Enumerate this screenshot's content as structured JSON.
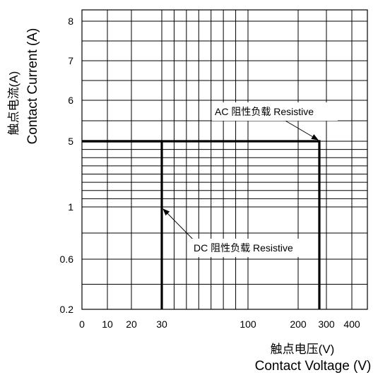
{
  "chart_data": {
    "type": "line",
    "title": "",
    "xlabel": "Contact Voltage (V)",
    "xlabel_cn": "触点电压(V)",
    "ylabel": "Contact Current (A)",
    "ylabel_cn": "触点电流(A)",
    "x_scale": "log",
    "y_scale": "nonlinear (ticks as printed)",
    "xlim": [
      0,
      400
    ],
    "ylim": [
      0.2,
      8
    ],
    "x_ticks": [
      0,
      10,
      20,
      30,
      100,
      200,
      300,
      400
    ],
    "x_tick_labels": [
      "0",
      "10",
      "20",
      "30",
      "100",
      "200",
      "300",
      "400"
    ],
    "y_ticks": [
      0.2,
      0.6,
      1,
      5,
      6,
      7,
      8
    ],
    "y_tick_labels": [
      "0.2",
      "0.6",
      "1",
      "5",
      "6",
      "7",
      "8"
    ],
    "grid": true,
    "series": [
      {
        "name": "AC 阻性负载 Resistive",
        "x": [
          0,
          250,
          250
        ],
        "y": [
          5,
          5,
          0.2
        ]
      },
      {
        "name": "DC 阻性负载 Resistive",
        "x": [
          0,
          30,
          30
        ],
        "y": [
          5,
          5,
          0.2
        ]
      }
    ],
    "annotations": [
      {
        "text": "AC 阻性负载 Resistive",
        "points_to": {
          "x": 250,
          "y": 5
        }
      },
      {
        "text": "DC 阻性负载 Resistive",
        "points_to": {
          "x": 30,
          "y": 1
        }
      }
    ],
    "colors": {
      "line": "#000000",
      "grid": "#000000",
      "background": "#ffffff"
    }
  }
}
